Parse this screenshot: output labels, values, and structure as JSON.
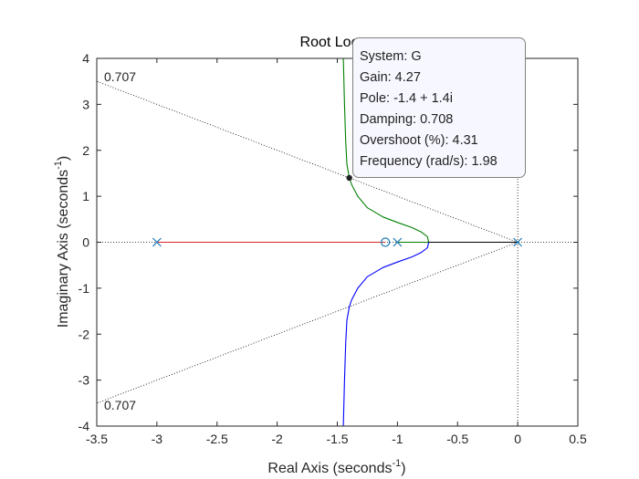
{
  "chart_data": {
    "type": "line",
    "title": "Root Locus",
    "xlabel": "Real Axis (seconds",
    "xlabel_sup": "-1",
    "xlabel_end": ")",
    "ylabel": "Imaginary Axis (seconds",
    "ylabel_sup": "-1",
    "ylabel_end": ")",
    "xlim": [
      -3.5,
      0.5
    ],
    "ylim": [
      -4,
      4
    ],
    "xticks": [
      -3.5,
      -3,
      -2.5,
      -2,
      -1.5,
      -1,
      -0.5,
      0,
      0.5
    ],
    "xtick_labels": [
      "-3.5",
      "-3",
      "-2.5",
      "-2",
      "-1.5",
      "-1",
      "-0.5",
      "0",
      "0.5"
    ],
    "yticks": [
      -4,
      -3,
      -2,
      -1,
      0,
      1,
      2,
      3,
      4
    ],
    "ytick_labels": [
      "-4",
      "-3",
      "-2",
      "-1",
      "0",
      "1",
      "2",
      "3",
      "4"
    ],
    "grid": false,
    "damping_lines": [
      {
        "label": "0.707",
        "zeta": 0.707,
        "sign": 1
      },
      {
        "label": "0.707",
        "zeta": 0.707,
        "sign": -1
      }
    ],
    "poles": [
      [
        -3,
        0
      ],
      [
        -1,
        0
      ],
      [
        0,
        0
      ]
    ],
    "zeros": [
      [
        -1.1,
        0
      ]
    ],
    "series": [
      {
        "color": "#d62728",
        "points": [
          [
            -3,
            0
          ],
          [
            -1.1,
            0
          ]
        ]
      },
      {
        "color": "#008000",
        "points": [
          [
            -1,
            0
          ],
          [
            -0.74,
            0
          ],
          [
            -0.75,
            0.12
          ],
          [
            -0.8,
            0.22
          ],
          [
            -0.88,
            0.32
          ],
          [
            -1.0,
            0.43
          ],
          [
            -1.12,
            0.55
          ],
          [
            -1.25,
            0.75
          ],
          [
            -1.33,
            1.0
          ],
          [
            -1.38,
            1.25
          ],
          [
            -1.4,
            1.4
          ],
          [
            -1.42,
            1.7
          ],
          [
            -1.43,
            2.2
          ],
          [
            -1.44,
            3.0
          ],
          [
            -1.45,
            4.0
          ]
        ]
      },
      {
        "color": "#0000ff",
        "points": [
          [
            -0.74,
            0
          ],
          [
            -0.75,
            -0.12
          ],
          [
            -0.8,
            -0.22
          ],
          [
            -0.88,
            -0.32
          ],
          [
            -1.0,
            -0.43
          ],
          [
            -1.12,
            -0.55
          ],
          [
            -1.25,
            -0.75
          ],
          [
            -1.33,
            -1.0
          ],
          [
            -1.38,
            -1.25
          ],
          [
            -1.4,
            -1.4
          ],
          [
            -1.42,
            -1.7
          ],
          [
            -1.43,
            -2.2
          ],
          [
            -1.44,
            -3.0
          ],
          [
            -1.45,
            -4.0
          ]
        ]
      },
      {
        "color": "#000000",
        "points": [
          [
            -0.74,
            0
          ],
          [
            0,
            0
          ]
        ]
      }
    ],
    "selected_point": {
      "x": -1.4,
      "y": 1.4
    }
  },
  "tooltip": {
    "system": "System: G",
    "gain": "Gain: 4.27",
    "pole": "Pole: -1.4 + 1.4i",
    "damping": "Damping: 0.708",
    "overshoot": "Overshoot (%): 4.31",
    "frequency": "Frequency (rad/s): 1.98"
  }
}
